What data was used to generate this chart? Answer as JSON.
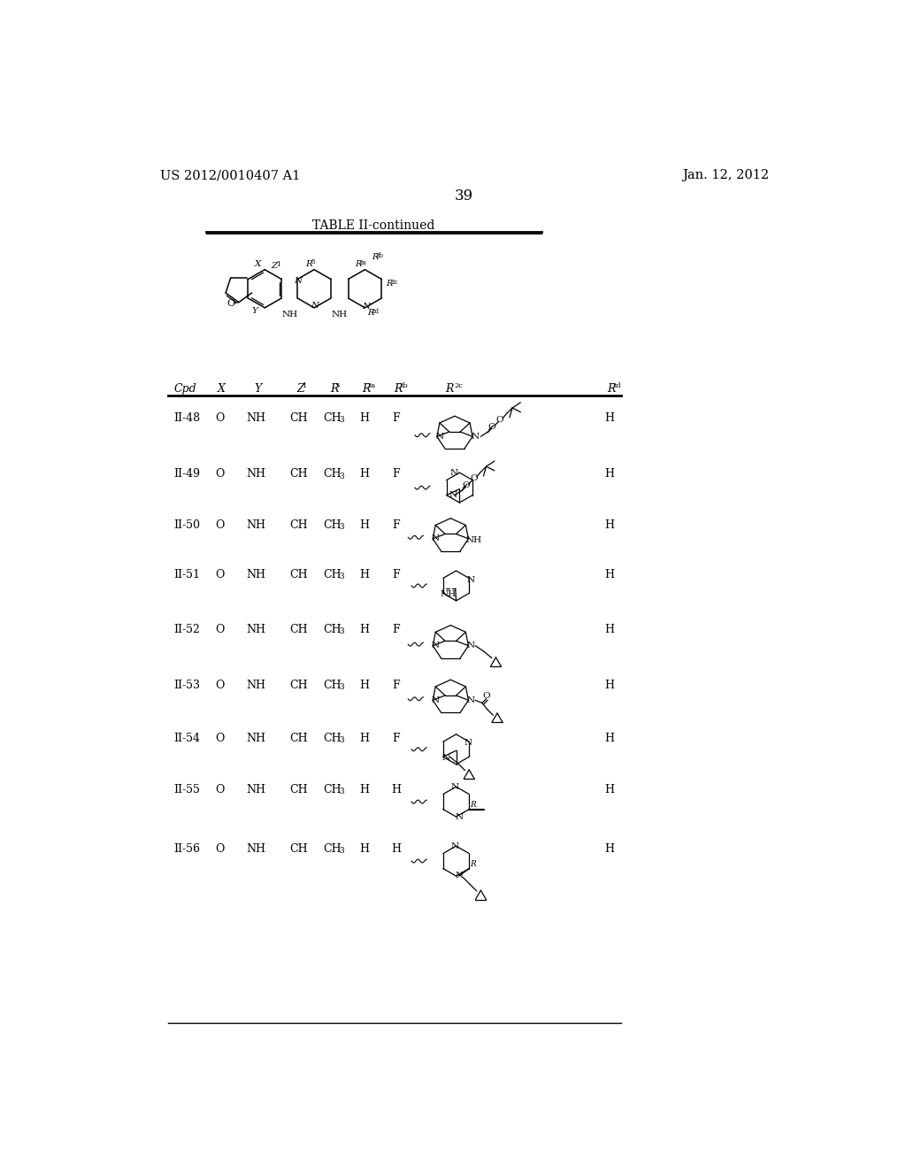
{
  "header_left": "US 2012/0010407 A1",
  "header_right": "Jan. 12, 2012",
  "page_number": "39",
  "table_title": "TABLE II-continued",
  "background_color": "#ffffff",
  "text_color": "#000000",
  "rows": [
    {
      "cpd": "II-48",
      "X": "O",
      "Y": "NH",
      "Z1": "CH",
      "R5": "CH3",
      "R2a": "H",
      "R2b": "F",
      "R2d": "H"
    },
    {
      "cpd": "II-49",
      "X": "O",
      "Y": "NH",
      "Z1": "CH",
      "R5": "CH3",
      "R2a": "H",
      "R2b": "F",
      "R2d": "H"
    },
    {
      "cpd": "II-50",
      "X": "O",
      "Y": "NH",
      "Z1": "CH",
      "R5": "CH3",
      "R2a": "H",
      "R2b": "F",
      "R2d": "H"
    },
    {
      "cpd": "II-51",
      "X": "O",
      "Y": "NH",
      "Z1": "CH",
      "R5": "CH3",
      "R2a": "H",
      "R2b": "F",
      "R2d": "H"
    },
    {
      "cpd": "II-52",
      "X": "O",
      "Y": "NH",
      "Z1": "CH",
      "R5": "CH3",
      "R2a": "H",
      "R2b": "F",
      "R2d": "H"
    },
    {
      "cpd": "II-53",
      "X": "O",
      "Y": "NH",
      "Z1": "CH",
      "R5": "CH3",
      "R2a": "H",
      "R2b": "F",
      "R2d": "H"
    },
    {
      "cpd": "II-54",
      "X": "O",
      "Y": "NH",
      "Z1": "CH",
      "R5": "CH3",
      "R2a": "H",
      "R2b": "F",
      "R2d": "H"
    },
    {
      "cpd": "II-55",
      "X": "O",
      "Y": "NH",
      "Z1": "CH",
      "R5": "CH3",
      "R2a": "H",
      "R2b": "H",
      "R2d": "H"
    },
    {
      "cpd": "II-56",
      "X": "O",
      "Y": "NH",
      "Z1": "CH",
      "R5": "CH3",
      "R2a": "H",
      "R2b": "H",
      "R2d": "H"
    }
  ]
}
